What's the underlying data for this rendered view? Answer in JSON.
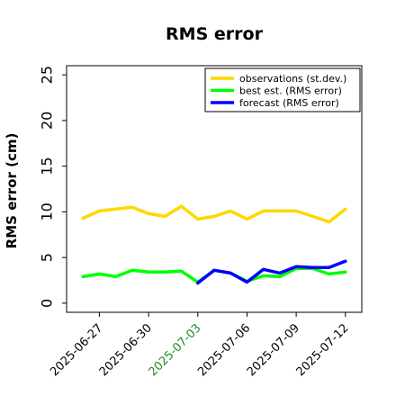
{
  "chart_data": {
    "type": "line",
    "title": "RMS error",
    "xlabel": "",
    "ylabel": "RMS error (cm)",
    "ylim": [
      -1,
      26
    ],
    "yticks": [
      0,
      5,
      10,
      15,
      20,
      25
    ],
    "grid": false,
    "legend_position": "top-right",
    "x": [
      "2025-06-26",
      "2025-06-27",
      "2025-06-28",
      "2025-06-29",
      "2025-06-30",
      "2025-07-01",
      "2025-07-02",
      "2025-07-03",
      "2025-07-04",
      "2025-07-05",
      "2025-07-06",
      "2025-07-07",
      "2025-07-08",
      "2025-07-09",
      "2025-07-10",
      "2025-07-11",
      "2025-07-12"
    ],
    "xlim": [
      "2025-06-25",
      "2025-07-13"
    ],
    "xticks": [
      {
        "date": "2025-06-27",
        "label": "2025-06-27",
        "color": "#000000"
      },
      {
        "date": "2025-06-30",
        "label": "2025-06-30",
        "color": "#000000"
      },
      {
        "date": "2025-07-03",
        "label": "2025-07-03",
        "color": "#228B22"
      },
      {
        "date": "2025-07-06",
        "label": "2025-07-06",
        "color": "#000000"
      },
      {
        "date": "2025-07-09",
        "label": "2025-07-09",
        "color": "#000000"
      },
      {
        "date": "2025-07-12",
        "label": "2025-07-12",
        "color": "#000000"
      }
    ],
    "series": [
      {
        "name": "observations (st.dev.)",
        "color": "#FFD700",
        "values": [
          9.3,
          10.1,
          10.3,
          10.5,
          9.8,
          9.5,
          10.6,
          9.2,
          9.5,
          10.1,
          9.2,
          10.1,
          10.1,
          10.1,
          9.5,
          8.9,
          10.3
        ]
      },
      {
        "name": "best est. (RMS error)",
        "color": "#00FF00",
        "values": [
          2.9,
          3.2,
          2.9,
          3.6,
          3.4,
          3.4,
          3.5,
          2.3,
          3.6,
          3.3,
          2.4,
          3.0,
          2.9,
          3.8,
          3.8,
          3.2,
          3.4
        ]
      },
      {
        "name": "forecast (RMS error)",
        "color": "#0000FF",
        "values": [
          null,
          null,
          null,
          null,
          null,
          null,
          null,
          2.2,
          3.6,
          3.3,
          2.3,
          3.7,
          3.3,
          4.0,
          3.9,
          3.9,
          4.6
        ]
      }
    ]
  }
}
